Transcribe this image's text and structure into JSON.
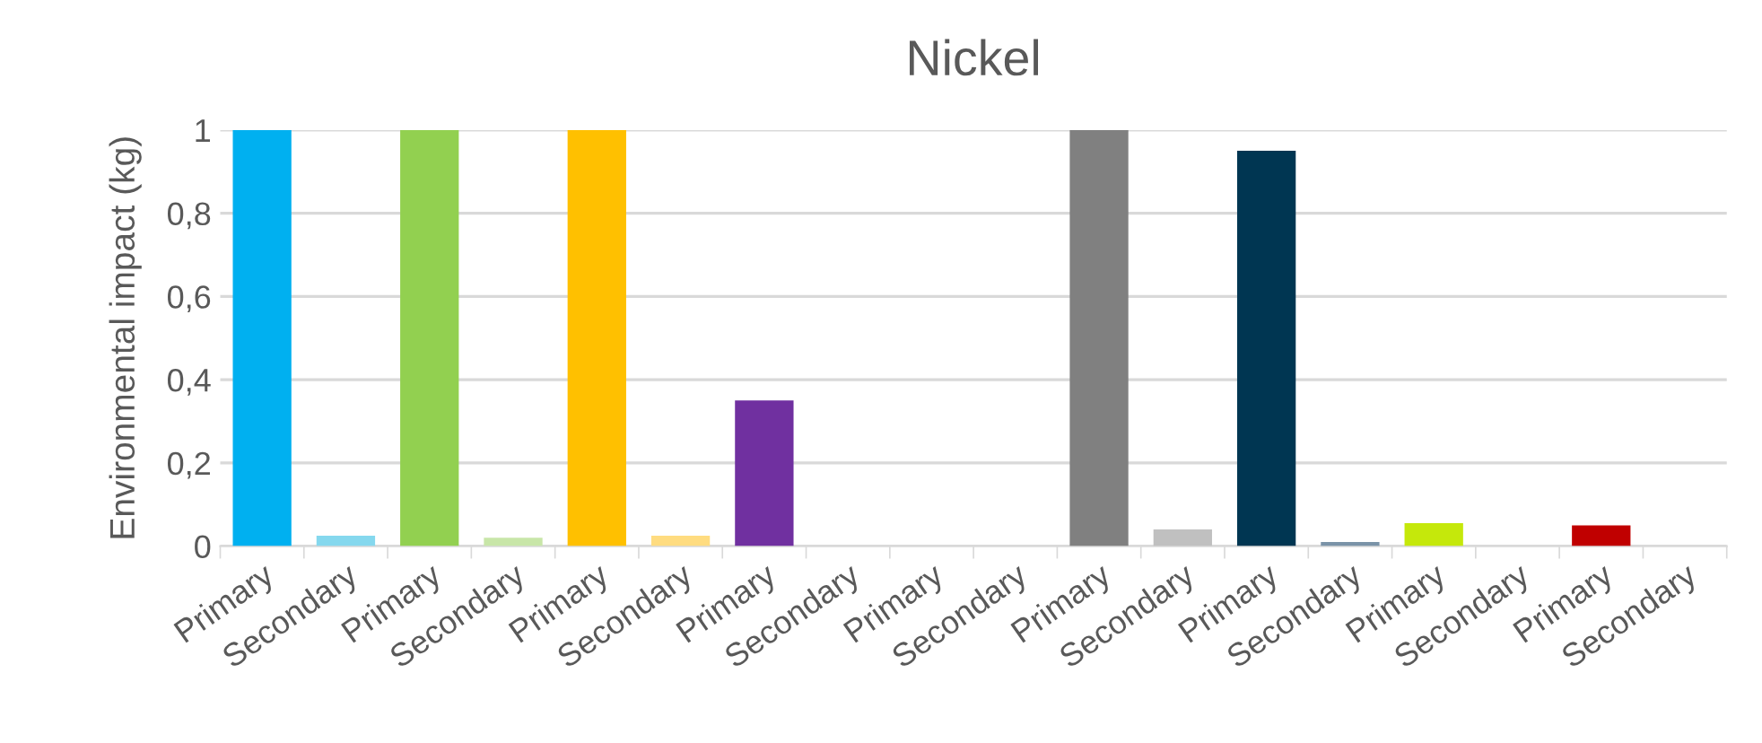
{
  "chart_data": {
    "type": "bar",
    "title": "Nickel",
    "ylabel": "Environmental impact (kg)",
    "categories": [
      "Primary",
      "Secondary",
      "Primary",
      "Secondary",
      "Primary",
      "Secondary",
      "Primary",
      "Secondary",
      "Primary",
      "Secondary",
      "Primary",
      "Secondary",
      "Primary",
      "Secondary",
      "Primary",
      "Secondary",
      "Primary",
      "Secondary"
    ],
    "values": [
      1,
      0.025,
      1,
      0.02,
      1,
      0.025,
      0.35,
      0,
      0,
      0,
      1,
      0.04,
      0.95,
      0.01,
      0.055,
      0,
      0.05,
      0
    ],
    "colors": [
      "#00b0f0",
      "#85d8ee",
      "#92d050",
      "#c8e6a8",
      "#ffc000",
      "#ffdc80",
      "#7030a0",
      "#b89ad0",
      "#a0a0a0",
      "#d0d0d0",
      "#808080",
      "#c0c0c0",
      "#003652",
      "#7a93a8",
      "#c5e80b",
      "#e0f080",
      "#c00000",
      "#e08080"
    ],
    "ylim": [
      0,
      1
    ],
    "yticks": [
      0,
      {
        "value": 0.2,
        "label": "0,2"
      },
      {
        "value": 0.4,
        "label": "0,4"
      },
      {
        "value": 0.6,
        "label": "0,6"
      },
      {
        "value": 0.8,
        "label": "0,8"
      },
      1
    ],
    "grid": "y"
  }
}
